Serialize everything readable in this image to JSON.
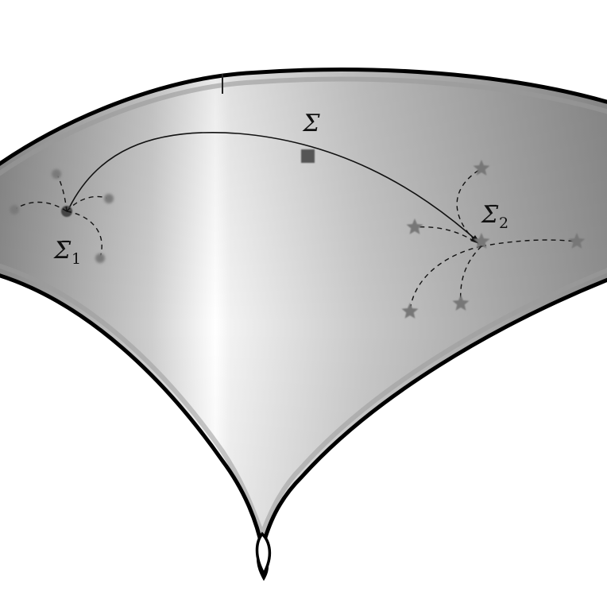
{
  "labels": {
    "sigma": "Σ",
    "sigma1_symbol": "Σ̄",
    "sigma1_sub": "1",
    "sigma2_symbol": "Σ̄",
    "sigma2_sub": "2"
  },
  "colors": {
    "surface_edge": "#000000",
    "surface_light": "#ffffff",
    "surface_dark": "#8c8c8c",
    "marker": "#555555",
    "star": "#777777",
    "dot": "#7a7a7a"
  }
}
